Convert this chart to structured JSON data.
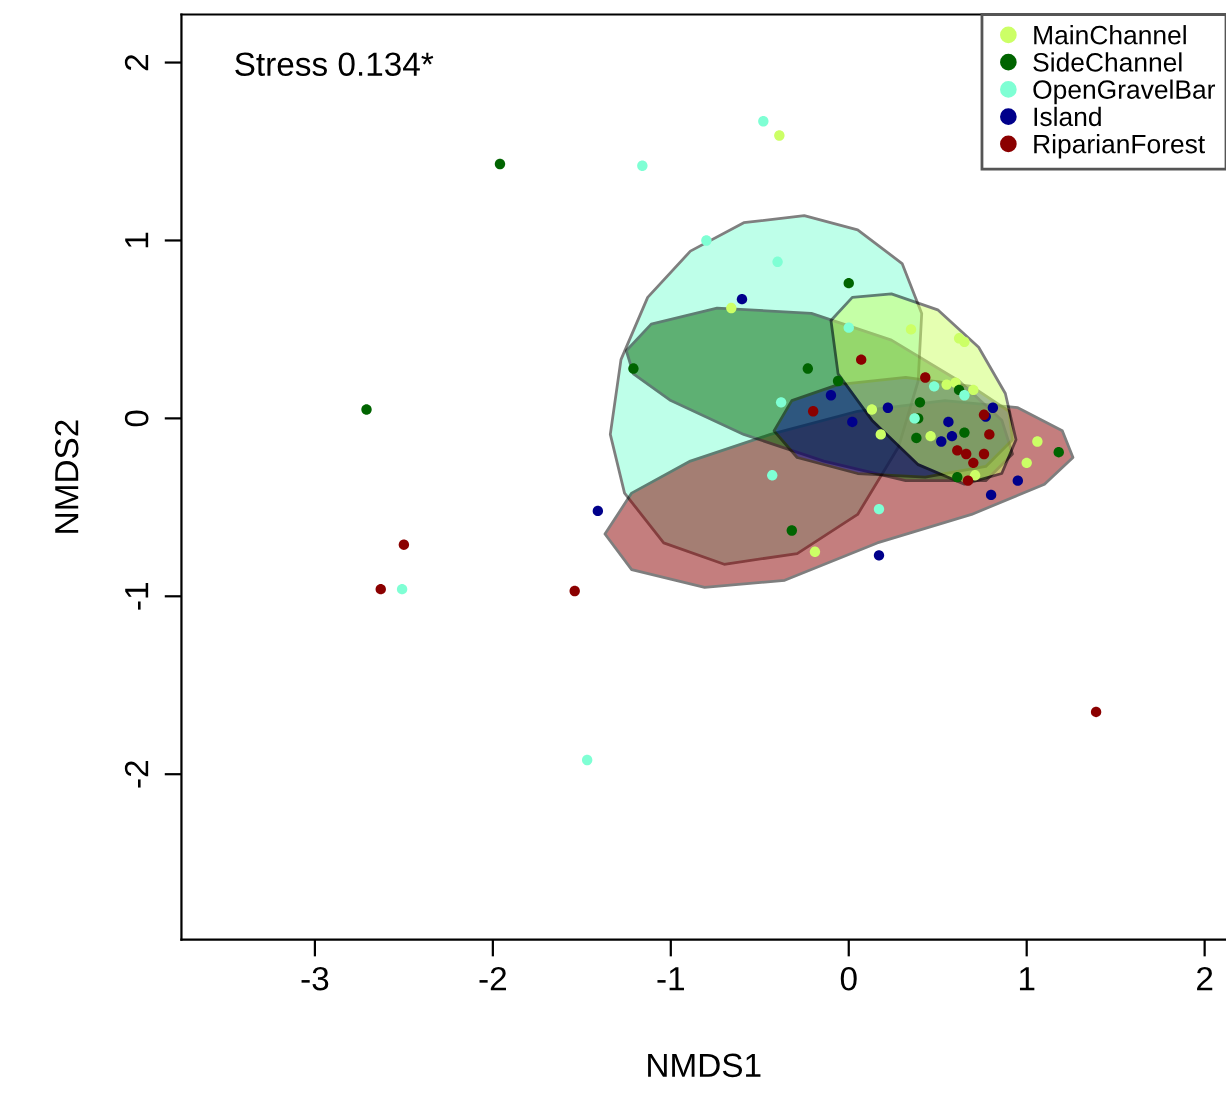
{
  "chart_data": {
    "type": "scatter",
    "xlabel": "NMDS1",
    "ylabel": "NMDS2",
    "annotations": [
      "Stress 0.134*"
    ],
    "xlim": [
      -3.75,
      2.12
    ],
    "ylim": [
      -2.93,
      2.27
    ],
    "xticks": [
      -3,
      -2,
      -1,
      0,
      1,
      2
    ],
    "yticks": [
      -2,
      -1,
      0,
      1,
      2
    ],
    "grid": false,
    "legend": "top right",
    "marker": "circle",
    "series": [
      {
        "type": "area",
        "marker": "none",
        "color": "#7fffd4",
        "x": [
          -1.34,
          -1.28,
          -1.13,
          -0.89,
          -0.59,
          -0.25,
          0.05,
          0.3,
          0.41,
          0.39,
          0.28,
          0.05,
          -0.29,
          -0.7,
          -1.04,
          -1.26
        ],
        "values": [
          -0.09,
          0.33,
          0.68,
          0.94,
          1.1,
          1.14,
          1.06,
          0.87,
          0.59,
          0.21,
          -0.16,
          -0.54,
          -0.76,
          -0.82,
          -0.7,
          -0.42
        ]
      },
      {
        "type": "area",
        "marker": "none",
        "color": "#8b0000",
        "x": [
          -1.37,
          -1.22,
          -0.89,
          -0.44,
          0.05,
          0.54,
          0.95,
          1.2,
          1.26,
          1.1,
          0.69,
          0.16,
          -0.36,
          -0.81,
          -1.22
        ],
        "values": [
          -0.65,
          -0.42,
          -0.24,
          -0.09,
          0.04,
          0.1,
          0.06,
          -0.07,
          -0.22,
          -0.37,
          -0.54,
          -0.7,
          -0.91,
          -0.95,
          -0.85
        ]
      },
      {
        "type": "area",
        "marker": "none",
        "color": "#006400",
        "x": [
          -1.25,
          -1.11,
          -0.74,
          -0.21,
          0.24,
          0.62,
          0.86,
          0.92,
          0.77,
          0.32,
          -0.14,
          -0.59,
          -1.0,
          -1.21
        ],
        "values": [
          0.38,
          0.53,
          0.62,
          0.59,
          0.44,
          0.21,
          -0.01,
          -0.2,
          -0.35,
          -0.35,
          -0.24,
          -0.09,
          0.1,
          0.25
        ]
      },
      {
        "type": "area",
        "marker": "none",
        "color": "#00008b",
        "x": [
          -0.42,
          -0.32,
          -0.06,
          0.32,
          0.69,
          0.9,
          0.92,
          0.77,
          0.43,
          0.05,
          -0.29
        ],
        "values": [
          -0.07,
          0.1,
          0.19,
          0.23,
          0.18,
          0.04,
          -0.12,
          -0.27,
          -0.33,
          -0.31,
          -0.22
        ]
      },
      {
        "type": "area",
        "marker": "none",
        "color": "#ccff66",
        "x": [
          -0.1,
          0.02,
          0.24,
          0.5,
          0.73,
          0.88,
          0.94,
          0.86,
          0.65,
          0.39,
          0.13,
          -0.06
        ],
        "values": [
          0.55,
          0.68,
          0.7,
          0.61,
          0.4,
          0.14,
          -0.12,
          -0.31,
          -0.37,
          -0.26,
          -0.01,
          0.25
        ]
      },
      {
        "name": "MainChannel",
        "color": "#ccff66",
        "x": [
          -0.66,
          0.35,
          0.62,
          0.65,
          0.55,
          0.6,
          0.7,
          0.13,
          0.18,
          0.46,
          0.71,
          1.06,
          1.0,
          -0.19,
          -0.39
        ],
        "values": [
          0.62,
          0.5,
          0.45,
          0.43,
          0.19,
          0.2,
          0.16,
          0.05,
          -0.09,
          -0.1,
          -0.32,
          -0.13,
          -0.25,
          -0.75,
          1.59
        ]
      },
      {
        "name": "SideChannel",
        "color": "#006400",
        "x": [
          -1.96,
          -2.71,
          -1.21,
          0.0,
          -0.23,
          -0.06,
          0.4,
          0.39,
          0.62,
          0.38,
          0.65,
          0.61,
          1.18,
          -0.32
        ],
        "values": [
          1.43,
          0.05,
          0.28,
          0.76,
          0.28,
          0.21,
          0.09,
          0.0,
          0.16,
          -0.11,
          -0.08,
          -0.33,
          -0.19,
          -0.63
        ]
      },
      {
        "name": "OpenGravelBar",
        "color": "#7fffd4",
        "x": [
          -0.48,
          -1.16,
          -0.8,
          -0.4,
          0.0,
          0.48,
          0.65,
          -0.38,
          0.37,
          -0.43,
          0.17,
          -2.51,
          -1.47
        ],
        "values": [
          1.67,
          1.42,
          1.0,
          0.88,
          0.51,
          0.18,
          0.13,
          0.09,
          0.0,
          -0.32,
          -0.51,
          -0.96,
          -1.92
        ]
      },
      {
        "name": "Island",
        "color": "#00008b",
        "x": [
          -0.6,
          -0.1,
          0.02,
          0.22,
          0.56,
          0.58,
          0.52,
          0.77,
          0.81,
          0.8,
          0.95,
          -1.41,
          0.17
        ],
        "values": [
          0.67,
          0.13,
          -0.02,
          0.06,
          -0.02,
          -0.1,
          -0.13,
          0.01,
          0.06,
          -0.43,
          -0.35,
          -0.52,
          -0.77
        ]
      },
      {
        "name": "RiparianForest",
        "color": "#8b0000",
        "x": [
          0.07,
          0.43,
          -0.2,
          0.76,
          0.79,
          0.61,
          0.66,
          0.7,
          0.76,
          0.67,
          -1.54,
          -2.5,
          -2.63,
          1.39
        ],
        "values": [
          0.33,
          0.23,
          0.04,
          0.02,
          -0.09,
          -0.18,
          -0.2,
          -0.25,
          -0.2,
          -0.35,
          -0.97,
          -0.71,
          -0.96,
          -1.65
        ]
      }
    ]
  }
}
